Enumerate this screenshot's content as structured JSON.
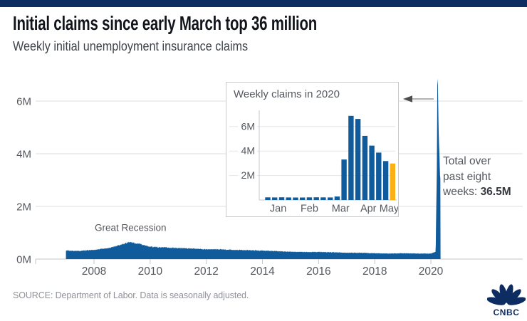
{
  "header": {
    "title": "Initial claims since early March top 36 million",
    "subtitle": "Weekly initial unemployment insurance claims"
  },
  "annotation": {
    "lines": [
      "Total over",
      "past eight"
    ],
    "last_line_prefix": "weeks: ",
    "value": "36.5M"
  },
  "footer": {
    "source": "SOURCE: Department of Labor. Data is seasonally adjusted.",
    "logo_text": "CNBC"
  },
  "colors": {
    "brand_bar": "#0d2c62",
    "series_blue": "#0f5b9c",
    "highlight_yellow": "#fbb016",
    "grid_line": "#dcdde0",
    "axis_line": "#c4c6c9",
    "axis_text": "#54585e",
    "title_text": "#12141c",
    "subtitle_text": "#3e434a",
    "source_text": "#8e9297",
    "annotation_text": "#54585e",
    "arrow_shaft": "#9a9a9a",
    "arrow_head": "#4d4d4d",
    "logo_navy": "#0d2c62"
  },
  "chart_data": [
    {
      "id": "main",
      "type": "area",
      "title": "Weekly initial unemployment insurance claims",
      "units": "millions of claims per week",
      "x_years": [
        2007.0,
        2007.5,
        2008.0,
        2008.5,
        2008.9,
        2009.25,
        2009.6,
        2010.0,
        2010.5,
        2011.0,
        2011.5,
        2012.0,
        2012.5,
        2013.0,
        2013.5,
        2014.0,
        2014.5,
        2015.0,
        2015.5,
        2016.0,
        2016.5,
        2017.0,
        2017.5,
        2018.0,
        2018.5,
        2019.0,
        2019.5,
        2020.0,
        2020.17,
        2020.211,
        2020.23,
        2020.25,
        2020.269,
        2020.288,
        2020.307,
        2020.326,
        2020.345
      ],
      "values_millions": [
        0.32,
        0.31,
        0.35,
        0.42,
        0.52,
        0.65,
        0.58,
        0.47,
        0.44,
        0.42,
        0.4,
        0.37,
        0.37,
        0.35,
        0.34,
        0.32,
        0.3,
        0.28,
        0.27,
        0.27,
        0.26,
        0.24,
        0.24,
        0.22,
        0.21,
        0.22,
        0.21,
        0.21,
        0.28,
        3.31,
        6.87,
        6.62,
        5.24,
        4.44,
        3.87,
        3.18,
        2.98
      ],
      "xticks": [
        2008,
        2010,
        2012,
        2014,
        2016,
        2018,
        2020
      ],
      "ytick_values": [
        0,
        2,
        4,
        6
      ],
      "ytick_labels": [
        "0M",
        "2M",
        "4M",
        "6M"
      ],
      "ylim": [
        0,
        7.4
      ],
      "annotations": [
        {
          "text": "Great Recession",
          "x_year": 2009.3,
          "y_million": 1.07
        }
      ]
    },
    {
      "id": "inset",
      "type": "bar",
      "title": "Weekly claims in 2020",
      "week_months": [
        "Jan",
        "Jan",
        "Jan",
        "Jan",
        "Feb",
        "Feb",
        "Feb",
        "Feb",
        "Feb",
        "Mar",
        "Mar",
        "Mar",
        "Mar",
        "Apr",
        "Apr",
        "Apr",
        "Apr",
        "May",
        "May"
      ],
      "values_millions": [
        0.214,
        0.207,
        0.223,
        0.212,
        0.201,
        0.204,
        0.215,
        0.22,
        0.217,
        0.211,
        0.282,
        3.31,
        6.87,
        6.62,
        5.24,
        4.44,
        3.87,
        3.18,
        2.98
      ],
      "month_labels": [
        "Jan",
        "Feb",
        "Mar",
        "Apr",
        "May"
      ],
      "ytick_values": [
        2,
        4,
        6
      ],
      "ytick_labels": [
        "2M",
        "4M",
        "6M"
      ],
      "ylim": [
        0,
        7.3
      ],
      "highlight_last": true
    }
  ]
}
